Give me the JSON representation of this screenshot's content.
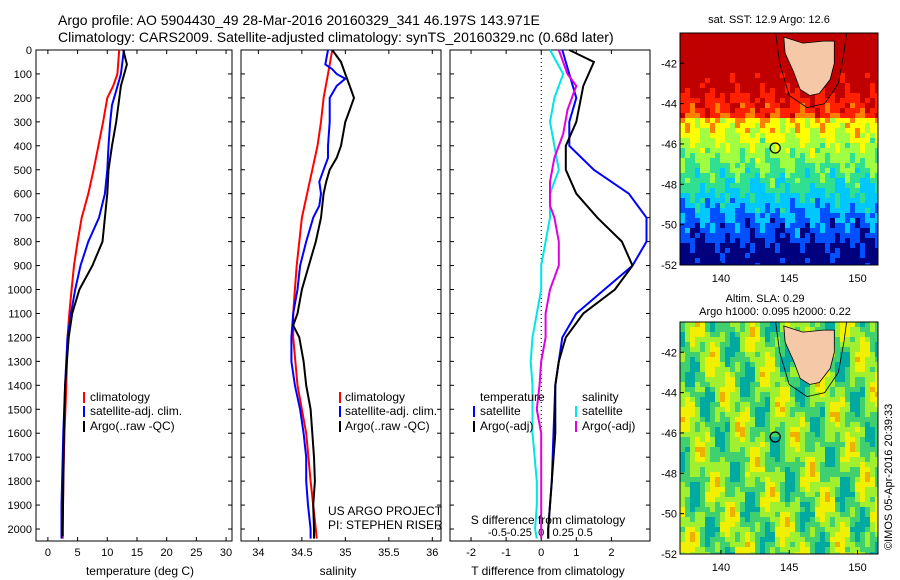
{
  "header": {
    "line1": "Argo profile: AO 5904430_49 28-Mar-2016 20160329_341 46.197S 143.971E",
    "line2": "Climatology: CARS2009. Satellite-adjusted climatology: synTS_20160329.nc (0.68d later)"
  },
  "chart_data": [
    {
      "type": "line",
      "id": "temperature",
      "xlabel": "temperature (deg C)",
      "xlim": [
        -2,
        31
      ],
      "xticks": [
        0,
        5,
        10,
        15,
        20,
        25,
        30
      ],
      "ylim": [
        2050,
        0
      ],
      "yticks": [
        0,
        100,
        200,
        300,
        400,
        500,
        600,
        700,
        800,
        900,
        1000,
        1100,
        1200,
        1300,
        1400,
        1500,
        1600,
        1700,
        1800,
        1900,
        2000
      ],
      "legend": [
        "climatology",
        "satellite-adj. clim.",
        "Argo(..raw -QC)"
      ],
      "legend_colors": [
        "#ff0000",
        "#0000ff",
        "#000000"
      ],
      "series": [
        {
          "name": "climatology",
          "color": "#ff0000",
          "points": [
            [
              12,
              0
            ],
            [
              11.7,
              100
            ],
            [
              11,
              150
            ],
            [
              10,
              200
            ],
            [
              9.3,
              300
            ],
            [
              8.5,
              400
            ],
            [
              7.7,
              500
            ],
            [
              6.8,
              600
            ],
            [
              5.7,
              700
            ],
            [
              5.0,
              800
            ],
            [
              4.4,
              900
            ],
            [
              4.0,
              1000
            ],
            [
              3.6,
              1100
            ],
            [
              3.3,
              1200
            ],
            [
              3.1,
              1400
            ],
            [
              2.8,
              1600
            ],
            [
              2.6,
              1800
            ],
            [
              2.5,
              2000
            ],
            [
              2.5,
              2040
            ]
          ]
        },
        {
          "name": "satellite-adj. clim.",
          "color": "#0000ff",
          "points": [
            [
              12.8,
              0
            ],
            [
              12.3,
              100
            ],
            [
              11.5,
              170
            ],
            [
              10.8,
              230
            ],
            [
              10.5,
              300
            ],
            [
              10.2,
              400
            ],
            [
              10,
              500
            ],
            [
              9.6,
              600
            ],
            [
              8.6,
              700
            ],
            [
              6.8,
              800
            ],
            [
              5.5,
              900
            ],
            [
              4.6,
              1000
            ],
            [
              3.9,
              1100
            ],
            [
              3.3,
              1200
            ],
            [
              2.9,
              1400
            ],
            [
              2.6,
              1600
            ],
            [
              2.4,
              1800
            ],
            [
              2.3,
              1900
            ],
            [
              2.3,
              2000
            ],
            [
              2.3,
              2040
            ]
          ]
        },
        {
          "name": "Argo(..raw -QC)",
          "color": "#000000",
          "points": [
            [
              12.7,
              0
            ],
            [
              13.3,
              60
            ],
            [
              12.3,
              150
            ],
            [
              11.5,
              300
            ],
            [
              10.8,
              400
            ],
            [
              10.2,
              500
            ],
            [
              10,
              600
            ],
            [
              9.6,
              700
            ],
            [
              9.2,
              800
            ],
            [
              7.5,
              900
            ],
            [
              5.3,
              1000
            ],
            [
              4.1,
              1100
            ],
            [
              3.5,
              1200
            ],
            [
              3.2,
              1300
            ],
            [
              2.9,
              1400
            ],
            [
              2.7,
              1600
            ],
            [
              2.6,
              1800
            ],
            [
              2.5,
              2000
            ],
            [
              2.5,
              2030
            ]
          ]
        }
      ]
    },
    {
      "type": "line",
      "id": "salinity",
      "xlabel": "salinity",
      "xlim": [
        33.8,
        36.1
      ],
      "xticks": [
        34,
        34.5,
        35,
        35.5,
        36
      ],
      "ylim": [
        2050,
        0
      ],
      "legend": [
        "climatology",
        "satellite-adj. clim.",
        "Argo(..raw -QC)"
      ],
      "legend_colors": [
        "#ff0000",
        "#0000ff",
        "#000000"
      ],
      "series": [
        {
          "name": "climatology",
          "color": "#ff0000",
          "points": [
            [
              34.85,
              0
            ],
            [
              34.8,
              100
            ],
            [
              34.75,
              200
            ],
            [
              34.72,
              300
            ],
            [
              34.68,
              400
            ],
            [
              34.62,
              500
            ],
            [
              34.56,
              600
            ],
            [
              34.5,
              700
            ],
            [
              34.47,
              800
            ],
            [
              34.44,
              900
            ],
            [
              34.42,
              1000
            ],
            [
              34.4,
              1100
            ],
            [
              34.4,
              1200
            ],
            [
              34.45,
              1400
            ],
            [
              34.55,
              1600
            ],
            [
              34.6,
              1800
            ],
            [
              34.66,
              2000
            ],
            [
              34.67,
              2040
            ]
          ]
        },
        {
          "name": "satellite-adj. clim.",
          "color": "#0000ff",
          "points": [
            [
              34.8,
              0
            ],
            [
              34.77,
              60
            ],
            [
              34.85,
              80
            ],
            [
              34.9,
              100
            ],
            [
              35.0,
              120
            ],
            [
              34.9,
              150
            ],
            [
              34.82,
              200
            ],
            [
              34.82,
              300
            ],
            [
              34.8,
              400
            ],
            [
              34.8,
              450
            ],
            [
              34.75,
              500
            ],
            [
              34.7,
              550
            ],
            [
              34.72,
              600
            ],
            [
              34.7,
              650
            ],
            [
              34.63,
              700
            ],
            [
              34.55,
              800
            ],
            [
              34.48,
              900
            ],
            [
              34.45,
              1000
            ],
            [
              34.4,
              1100
            ],
            [
              34.38,
              1200
            ],
            [
              34.38,
              1300
            ],
            [
              34.42,
              1400
            ],
            [
              34.48,
              1500
            ],
            [
              34.52,
              1600
            ],
            [
              34.55,
              1700
            ],
            [
              34.55,
              1800
            ],
            [
              34.57,
              1900
            ],
            [
              34.6,
              2000
            ],
            [
              34.6,
              2040
            ]
          ]
        },
        {
          "name": "Argo(..raw -QC)",
          "color": "#000000",
          "points": [
            [
              34.85,
              0
            ],
            [
              34.95,
              50
            ],
            [
              35.0,
              100
            ],
            [
              35.05,
              150
            ],
            [
              35.1,
              200
            ],
            [
              35.05,
              250
            ],
            [
              35.0,
              300
            ],
            [
              34.95,
              400
            ],
            [
              34.9,
              450
            ],
            [
              34.82,
              500
            ],
            [
              34.78,
              550
            ],
            [
              34.75,
              600
            ],
            [
              34.72,
              700
            ],
            [
              34.66,
              800
            ],
            [
              34.58,
              900
            ],
            [
              34.5,
              1000
            ],
            [
              34.45,
              1100
            ],
            [
              34.4,
              1150
            ],
            [
              34.47,
              1200
            ],
            [
              34.52,
              1300
            ],
            [
              34.55,
              1400
            ],
            [
              34.6,
              1500
            ],
            [
              34.62,
              1600
            ],
            [
              34.64,
              1700
            ],
            [
              34.65,
              1800
            ],
            [
              34.63,
              1900
            ],
            [
              34.64,
              2000
            ],
            [
              34.64,
              2040
            ]
          ]
        }
      ]
    },
    {
      "type": "line",
      "id": "difference",
      "xlabel": "T difference from climatology",
      "xlabel_top": "S difference from climatology",
      "xlim": [
        -2.6,
        3.1
      ],
      "xticks": [
        -2,
        -1,
        0,
        1,
        2
      ],
      "sticks": [
        -0.5,
        -0.25,
        0,
        0.25,
        0.5
      ],
      "ylim": [
        2050,
        0
      ],
      "legend": [
        "temperature",
        "satellite",
        "Argo(-adj)",
        "salinity",
        "satellite",
        "Argo(-adj)"
      ],
      "legend_colors": [
        "#ffffff",
        "#0000ff",
        "#000000",
        "#ffffff",
        "#00e5e5",
        "#e000e0"
      ],
      "series": [
        {
          "name": "satellite",
          "color": "#0000ff",
          "points": [
            [
              0.6,
              0
            ],
            [
              0.8,
              100
            ],
            [
              1.0,
              200
            ],
            [
              0.8,
              300
            ],
            [
              0.8,
              400
            ],
            [
              1.5,
              500
            ],
            [
              2.5,
              600
            ],
            [
              3.0,
              700
            ],
            [
              3.0,
              800
            ],
            [
              2.6,
              900
            ],
            [
              1.8,
              1000
            ],
            [
              1.0,
              1100
            ],
            [
              0.6,
              1200
            ],
            [
              0.4,
              1400
            ],
            [
              0.35,
              1600
            ],
            [
              0.3,
              1800
            ],
            [
              0.2,
              2000
            ],
            [
              0.2,
              2040
            ]
          ]
        },
        {
          "name": "Argo(-adj)",
          "color": "#000000",
          "points": [
            [
              0.8,
              0
            ],
            [
              1.5,
              50
            ],
            [
              1.2,
              150
            ],
            [
              1.0,
              300
            ],
            [
              0.7,
              400
            ],
            [
              0.7,
              500
            ],
            [
              1.0,
              600
            ],
            [
              1.6,
              700
            ],
            [
              2.3,
              800
            ],
            [
              2.6,
              900
            ],
            [
              2.1,
              1000
            ],
            [
              1.2,
              1100
            ],
            [
              0.7,
              1200
            ],
            [
              0.5,
              1300
            ],
            [
              0.4,
              1400
            ],
            [
              0.4,
              1500
            ],
            [
              0.4,
              1600
            ],
            [
              0.3,
              1800
            ],
            [
              0.2,
              2000
            ],
            [
              0.2,
              2040
            ]
          ]
        },
        {
          "name": "satellite (salinity)",
          "color": "#00e5e5",
          "points": [
            [
              0.1,
              0
            ],
            [
              0.25,
              100
            ],
            [
              0.15,
              200
            ],
            [
              0.1,
              300
            ],
            [
              0.15,
              400
            ],
            [
              0.2,
              500
            ],
            [
              0.1,
              600
            ],
            [
              0.1,
              700
            ],
            [
              0.05,
              800
            ],
            [
              0.0,
              900
            ],
            [
              0.0,
              1000
            ],
            [
              -0.05,
              1100
            ],
            [
              -0.1,
              1200
            ],
            [
              -0.12,
              1300
            ],
            [
              -0.1,
              1400
            ],
            [
              -0.1,
              1500
            ],
            [
              -0.1,
              1600
            ],
            [
              -0.05,
              1800
            ],
            [
              -0.05,
              1900
            ],
            [
              -0.07,
              2000
            ],
            [
              -0.05,
              2040
            ]
          ]
        },
        {
          "name": "Argo(-adj) (salinity)",
          "color": "#e000e0",
          "points": [
            [
              0.2,
              0
            ],
            [
              0.3,
              100
            ],
            [
              0.4,
              150
            ],
            [
              0.3,
              250
            ],
            [
              0.25,
              350
            ],
            [
              0.15,
              450
            ],
            [
              0.1,
              550
            ],
            [
              0.1,
              650
            ],
            [
              0.15,
              700
            ],
            [
              0.2,
              800
            ],
            [
              0.2,
              900
            ],
            [
              0.1,
              1000
            ],
            [
              0.05,
              1100
            ],
            [
              0.05,
              1200
            ],
            [
              0.0,
              1300
            ],
            [
              -0.02,
              1400
            ],
            [
              -0.05,
              1500
            ],
            [
              0.0,
              1600
            ],
            [
              0.0,
              1800
            ],
            [
              0.0,
              2000
            ],
            [
              0.0,
              2040
            ]
          ]
        }
      ]
    },
    {
      "type": "heatmap",
      "id": "sst-map",
      "title": "sat. SST: 12.9 Argo: 12.6",
      "xlim": [
        137,
        151.5
      ],
      "ylim": [
        -52,
        -40.5
      ],
      "xticks": [
        140,
        145,
        150
      ],
      "yticks": [
        -42,
        -44,
        -46,
        -48,
        -50,
        -52
      ],
      "marker": [
        143.97,
        -46.2
      ],
      "colors": [
        "#00007f",
        "#0050ff",
        "#00c8ff",
        "#30e090",
        "#a0ff40",
        "#ffff00",
        "#ff8000",
        "#ff2000",
        "#c00000"
      ]
    },
    {
      "type": "heatmap",
      "id": "sla-map",
      "title": "Altim. SLA: 0.29",
      "subtitle": "Argo h1000: 0.095 h2000: 0.22",
      "xlim": [
        137,
        151.5
      ],
      "ylim": [
        -52,
        -40.5
      ],
      "xticks": [
        140,
        145,
        150
      ],
      "yticks": [
        -42,
        -44,
        -46,
        -48,
        -50,
        -52
      ],
      "marker": [
        143.97,
        -46.2
      ],
      "colors": [
        "#00aaa0",
        "#40d070",
        "#a0f030",
        "#f0f000",
        "#f0b000",
        "#c06000"
      ]
    }
  ],
  "annotations": {
    "project": "US ARGO PROJECT",
    "pi": "PI: STEPHEN RISER",
    "imos": "©IMOS 05-Apr-2016 20:39:33"
  }
}
